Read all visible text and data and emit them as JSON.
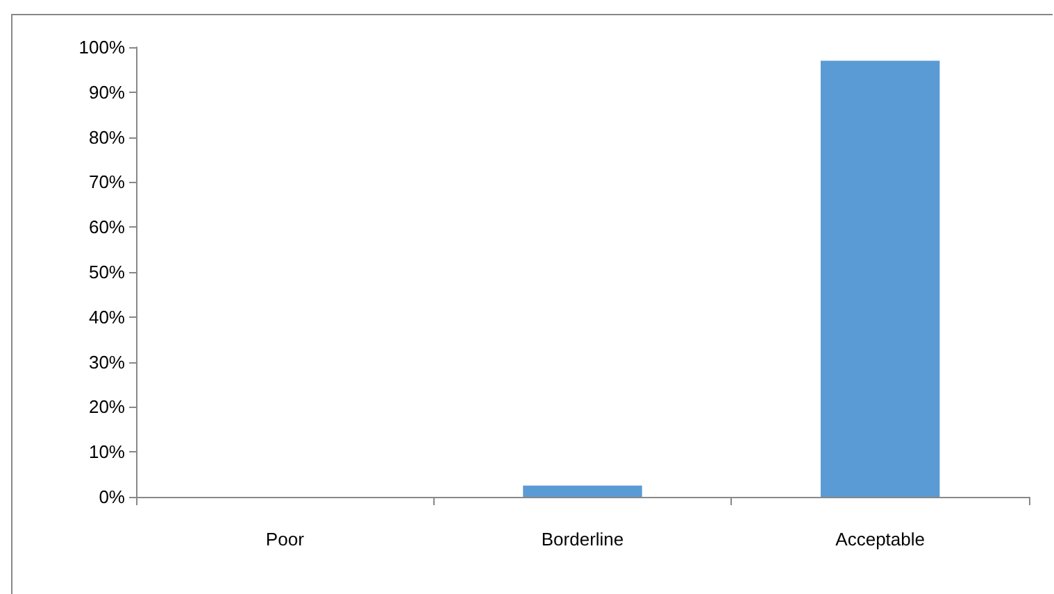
{
  "chart_data": {
    "type": "bar",
    "categories": [
      "Poor",
      "Borderline",
      "Acceptable"
    ],
    "values": [
      0,
      2.5,
      97
    ],
    "color": "#5b9bd5",
    "ylim": [
      0,
      100
    ],
    "yticks": [
      {
        "value": 0,
        "label": "0%"
      },
      {
        "value": 10,
        "label": "10%"
      },
      {
        "value": 20,
        "label": "20%"
      },
      {
        "value": 30,
        "label": "30%"
      },
      {
        "value": 40,
        "label": "40%"
      },
      {
        "value": 50,
        "label": "50%"
      },
      {
        "value": 60,
        "label": "60%"
      },
      {
        "value": 70,
        "label": "70%"
      },
      {
        "value": 80,
        "label": "80%"
      },
      {
        "value": 90,
        "label": "90%"
      },
      {
        "value": 100,
        "label": "100%"
      }
    ],
    "grid": false
  }
}
